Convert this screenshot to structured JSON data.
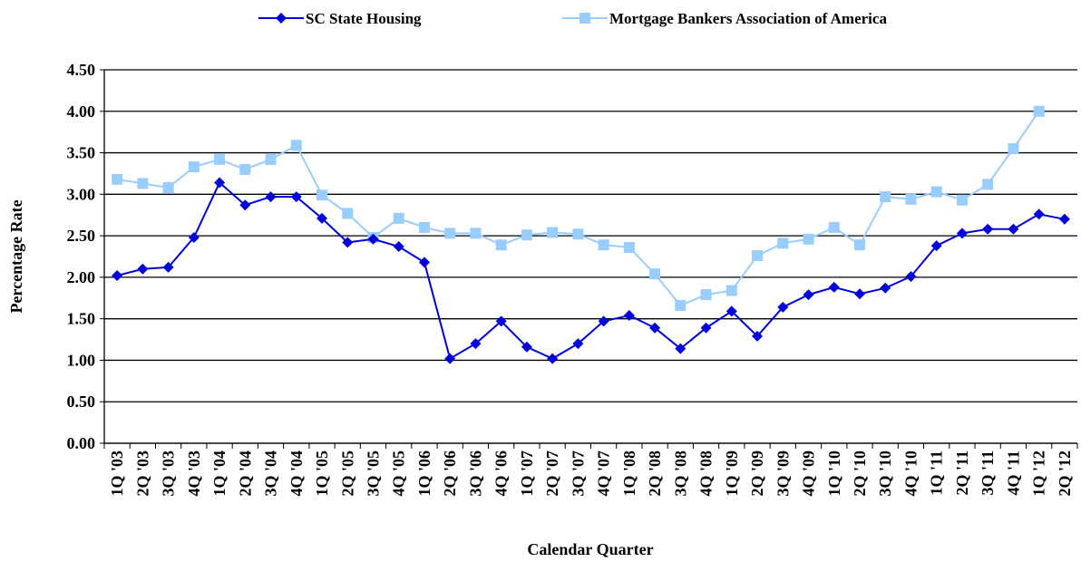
{
  "chart_data": {
    "type": "line",
    "x_label": "Calendar Quarter",
    "y_label": "Percentage Rate",
    "categories": [
      "1Q '03",
      "2Q '03",
      "3Q '03",
      "4Q '03",
      "1Q '04",
      "2Q '04",
      "3Q '04",
      "4Q '04",
      "1Q '05",
      "2Q '05",
      "3Q '05",
      "4Q '05",
      "1Q '06",
      "2Q '06",
      "3Q '06",
      "4Q '06",
      "1Q '07",
      "2Q '07",
      "3Q '07",
      "4Q '07",
      "1Q '08",
      "2Q '08",
      "3Q '08",
      "4Q '08",
      "1Q '09",
      "2Q '09",
      "3Q '09",
      "4Q '09",
      "1Q '10",
      "2Q '10",
      "3Q '10",
      "4Q '10",
      "1Q '11",
      "2Q '11",
      "3Q '11",
      "4Q '11",
      "1Q '12",
      "2Q '12"
    ],
    "series": [
      {
        "name": "SC State Housing",
        "color": "#0000dd",
        "marker": "diamond",
        "values": [
          2.02,
          2.1,
          2.12,
          2.48,
          3.14,
          2.87,
          2.97,
          2.97,
          2.71,
          2.42,
          2.46,
          2.37,
          2.18,
          1.02,
          1.2,
          1.47,
          1.16,
          1.02,
          1.2,
          1.47,
          1.54,
          1.39,
          1.14,
          1.39,
          1.59,
          1.29,
          1.64,
          1.79,
          1.88,
          1.8,
          1.87,
          2.01,
          2.38,
          2.53,
          2.58,
          2.58,
          2.76,
          2.7
        ]
      },
      {
        "name": "Mortgage Bankers Association of America",
        "color": "#99ccff",
        "marker": "square",
        "values": [
          3.18,
          3.13,
          3.08,
          3.33,
          3.42,
          3.3,
          3.42,
          3.59,
          2.99,
          2.77,
          2.48,
          2.71,
          2.6,
          2.53,
          2.53,
          2.39,
          2.51,
          2.54,
          2.52,
          2.39,
          2.36,
          2.04,
          1.66,
          1.79,
          1.84,
          2.26,
          2.41,
          2.46,
          2.6,
          2.39,
          2.97,
          2.94,
          3.03,
          2.93,
          3.12,
          3.55,
          4.0,
          null
        ]
      }
    ],
    "ylim": [
      0,
      4.5
    ],
    "yticks": [
      {
        "value": 0,
        "label": "0.00"
      },
      {
        "value": 0.5,
        "label": "0.50"
      },
      {
        "value": 1,
        "label": "1.00"
      },
      {
        "value": 1.5,
        "label": "1.50"
      },
      {
        "value": 2,
        "label": "2.00"
      },
      {
        "value": 2.5,
        "label": "2.50"
      },
      {
        "value": 3,
        "label": "3.00"
      },
      {
        "value": 3.5,
        "label": "3.50"
      },
      {
        "value": 4,
        "label": "4.00"
      },
      {
        "value": 4.5,
        "label": "4.50"
      }
    ],
    "grid": true,
    "legend": "top"
  }
}
